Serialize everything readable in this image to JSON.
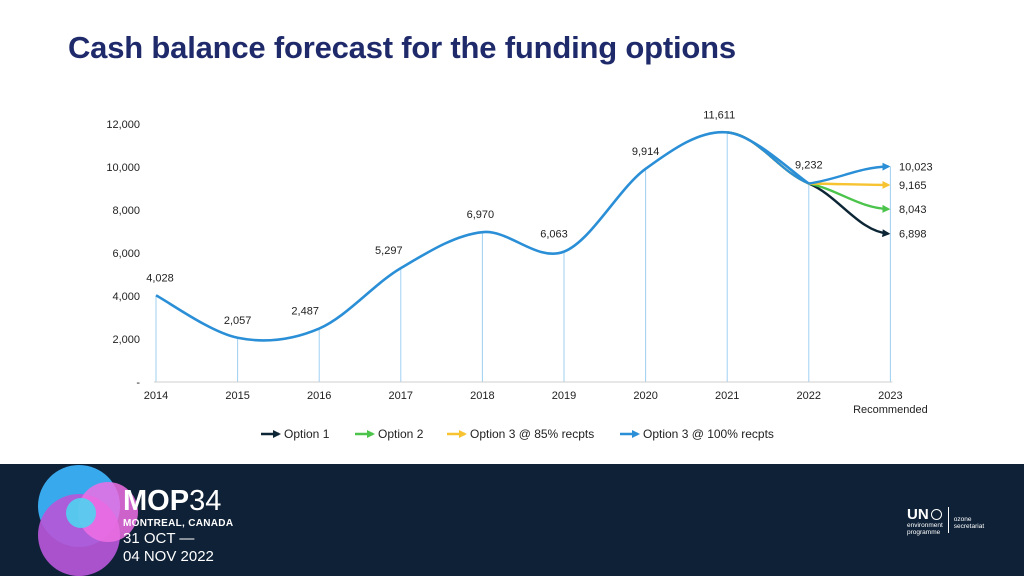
{
  "slide": {
    "title": "Cash balance forecast for the funding options"
  },
  "chart_data": {
    "type": "line",
    "categories": [
      "2014",
      "2015",
      "2016",
      "2017",
      "2018",
      "2019",
      "2020",
      "2021",
      "2022",
      "2023"
    ],
    "category_sublabel": {
      "2023": "Recommended"
    },
    "ylim": [
      0,
      12000
    ],
    "yticks": [
      "-",
      "2,000",
      "4,000",
      "6,000",
      "8,000",
      "10,000",
      "12,000"
    ],
    "ytick_values": [
      0,
      2000,
      4000,
      6000,
      8000,
      10000,
      12000
    ],
    "history": {
      "values": [
        4028,
        2057,
        2487,
        5297,
        6970,
        6063,
        9914,
        11611,
        9232
      ],
      "labels": [
        "4,028",
        "2,057",
        "2,487",
        "5,297",
        "6,970",
        "6,063",
        "9,914",
        "11,611",
        "9,232"
      ]
    },
    "series": [
      {
        "name": "Option 1",
        "color": "#0d2636",
        "from_value": 9232,
        "end_value": 6898,
        "end_label": "6,898"
      },
      {
        "name": "Option 2",
        "color": "#4cc44c",
        "from_value": 9232,
        "end_value": 8043,
        "end_label": "8,043"
      },
      {
        "name": "Option 3 @ 85% recpts",
        "color": "#f7c331",
        "from_value": 9232,
        "end_value": 9165,
        "end_label": "9,165"
      },
      {
        "name": "Option 3 @ 100% recpts",
        "color": "#2a8fd6",
        "from_value": 9232,
        "end_value": 10023,
        "end_label": "10,023"
      }
    ],
    "main_color": "#2a8fd6",
    "gridline_color": "#9fd0f2",
    "legend_position": "bottom"
  },
  "footer": {
    "brand_bold": "MOP",
    "brand_number": "34",
    "location": "MONTREAL, CANADA",
    "date_line1": "31 OCT —",
    "date_line2": "04 NOV 2022",
    "un_letters": "UN",
    "un_line1": "environment",
    "un_line2": "programme",
    "ozone_line1": "ozone",
    "ozone_line2": "secretariat"
  }
}
